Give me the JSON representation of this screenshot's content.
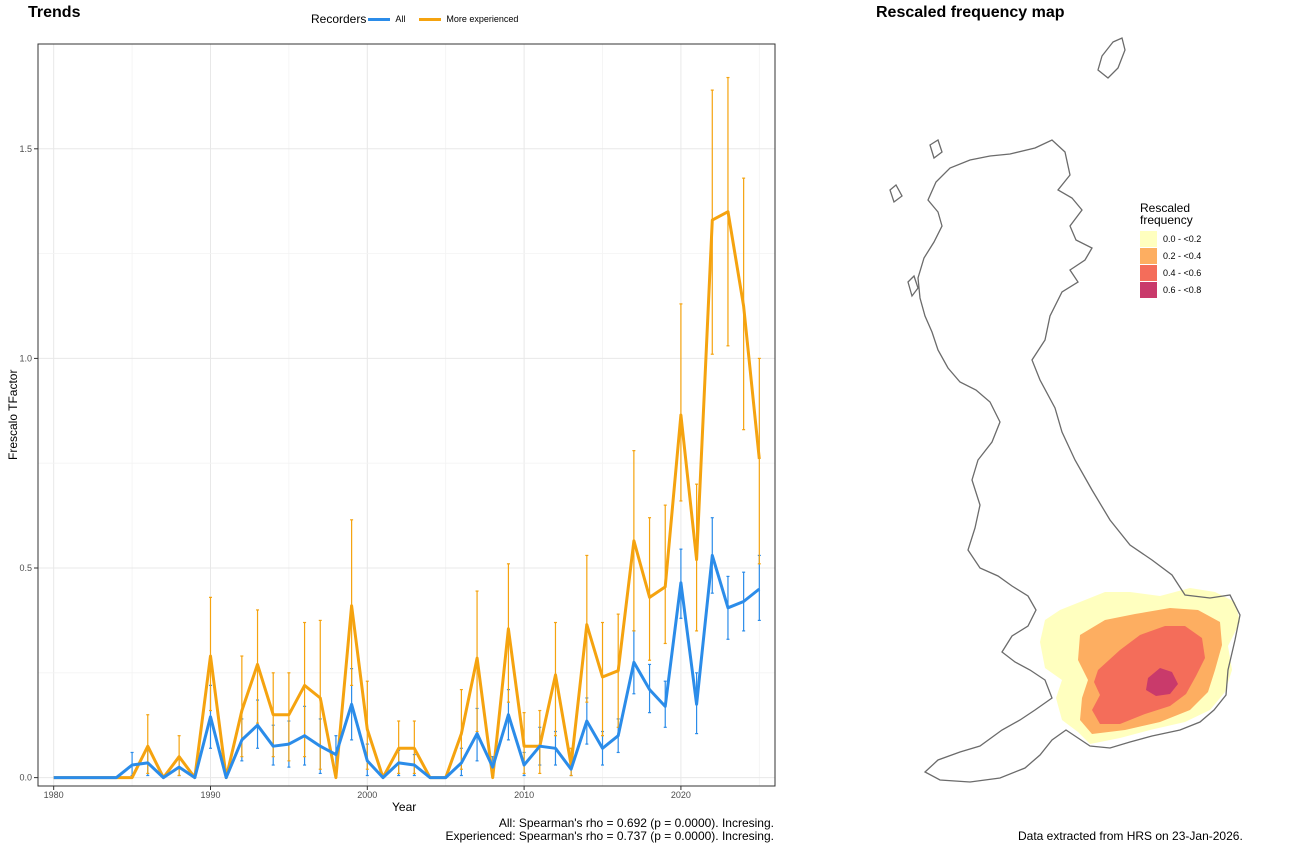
{
  "trends": {
    "title": "Trends",
    "legend_title": "Recorders",
    "legend_items": [
      "All",
      "More experienced"
    ],
    "ylabel": "Frescalo TFactor",
    "xlabel": "Year",
    "stats": [
      "All: Spearman's rho = 0.692 (p = 0.0000). Incresing.",
      "Experienced: Spearman's rho = 0.737 (p = 0.0000). Incresing."
    ]
  },
  "map": {
    "title": "Rescaled frequency map",
    "legend_title": [
      "Rescaled",
      "frequency"
    ],
    "legend": [
      {
        "label": "0.0 - <0.2",
        "color": "#ffffbf"
      },
      {
        "label": "0.2 - <0.4",
        "color": "#fdae61"
      },
      {
        "label": "0.4 - <0.6",
        "color": "#f46d5a"
      },
      {
        "label": "0.6 - <0.8",
        "color": "#c93a6b"
      }
    ],
    "source_note": "Data extracted from HRS on 23-Jan-2026."
  },
  "colors": {
    "all": "#2b8ce9",
    "experienced": "#f5a30f",
    "outline": "#6b6b6b"
  },
  "chart_data": {
    "type": "line",
    "xlabel": "Year",
    "ylabel": "Frescalo TFactor",
    "xlim": [
      1979,
      2026
    ],
    "ylim": [
      -0.02,
      1.75
    ],
    "xticks": [
      1980,
      1990,
      2000,
      2010,
      2020
    ],
    "yticks": [
      0.0,
      0.5,
      1.0,
      1.5
    ],
    "x": [
      1980,
      1981,
      1982,
      1983,
      1984,
      1985,
      1986,
      1987,
      1988,
      1989,
      1990,
      1991,
      1992,
      1993,
      1994,
      1995,
      1996,
      1997,
      1998,
      1999,
      2000,
      2001,
      2002,
      2003,
      2004,
      2005,
      2006,
      2007,
      2008,
      2009,
      2010,
      2011,
      2012,
      2013,
      2014,
      2015,
      2016,
      2017,
      2018,
      2019,
      2020,
      2021,
      2022,
      2023,
      2024,
      2025
    ],
    "series": [
      {
        "name": "All",
        "values": [
          0,
          0,
          0,
          0,
          0,
          0.03,
          0.035,
          0,
          0.025,
          0,
          0.145,
          0,
          0.09,
          0.125,
          0.075,
          0.08,
          0.1,
          0.075,
          0.055,
          0.175,
          0.04,
          0,
          0.035,
          0.03,
          0,
          0,
          0.035,
          0.105,
          0.025,
          0.15,
          0.03,
          0.075,
          0.07,
          0.02,
          0.135,
          0.07,
          0.1,
          0.275,
          0.21,
          0.17,
          0.465,
          0.175,
          0.53,
          0.405,
          0.42,
          0.45
        ],
        "lower": [
          0,
          0,
          0,
          0,
          0,
          0.005,
          0.005,
          0,
          0.005,
          0,
          0.07,
          0,
          0.04,
          0.07,
          0.03,
          0.025,
          0.03,
          0.01,
          0.01,
          0.09,
          0.005,
          0,
          0.005,
          0.005,
          0,
          0,
          0.005,
          0.04,
          0.005,
          0.09,
          0.005,
          0.03,
          0.03,
          0.005,
          0.08,
          0.03,
          0.06,
          0.2,
          0.155,
          0.12,
          0.38,
          0.105,
          0.44,
          0.33,
          0.35,
          0.375
        ],
        "upper": [
          0,
          0,
          0,
          0,
          0,
          0.06,
          0.07,
          0,
          0.05,
          0,
          0.22,
          0,
          0.14,
          0.185,
          0.125,
          0.135,
          0.17,
          0.14,
          0.1,
          0.26,
          0.08,
          0,
          0.065,
          0.055,
          0,
          0,
          0.07,
          0.165,
          0.05,
          0.21,
          0.06,
          0.12,
          0.11,
          0.04,
          0.19,
          0.11,
          0.14,
          0.35,
          0.27,
          0.23,
          0.545,
          0.25,
          0.62,
          0.48,
          0.49,
          0.53
        ]
      },
      {
        "name": "More experienced",
        "values": [
          0,
          0,
          0,
          0,
          0,
          0,
          0.075,
          0,
          0.05,
          0,
          0.29,
          0,
          0.16,
          0.27,
          0.15,
          0.15,
          0.22,
          0.19,
          0,
          0.41,
          0.115,
          0,
          0.07,
          0.07,
          0,
          0,
          0.105,
          0.285,
          0,
          0.355,
          0.075,
          0.075,
          0.245,
          0.03,
          0.365,
          0.24,
          0.255,
          0.565,
          0.43,
          0.455,
          0.865,
          0.52,
          1.33,
          1.35,
          1.125,
          0.76
        ],
        "lower": [
          0,
          0,
          0,
          0,
          0,
          0,
          0.01,
          0,
          0.005,
          0,
          0.16,
          0,
          0.05,
          0.13,
          0.05,
          0.04,
          0.05,
          0.02,
          0,
          0.22,
          0.02,
          0,
          0.01,
          0.01,
          0,
          0,
          0.02,
          0.11,
          0,
          0.18,
          0.01,
          0.01,
          0.1,
          0.005,
          0.18,
          0.1,
          0.12,
          0.35,
          0.28,
          0.32,
          0.66,
          0.35,
          1.01,
          1.03,
          0.83,
          0.51
        ],
        "upper": [
          0,
          0,
          0,
          0,
          0,
          0,
          0.15,
          0,
          0.1,
          0,
          0.43,
          0,
          0.29,
          0.4,
          0.25,
          0.25,
          0.37,
          0.375,
          0,
          0.615,
          0.23,
          0,
          0.135,
          0.135,
          0,
          0,
          0.21,
          0.445,
          0,
          0.51,
          0.155,
          0.16,
          0.37,
          0.07,
          0.53,
          0.37,
          0.39,
          0.78,
          0.62,
          0.65,
          1.13,
          0.7,
          1.64,
          1.67,
          1.43,
          1.0
        ]
      }
    ]
  }
}
